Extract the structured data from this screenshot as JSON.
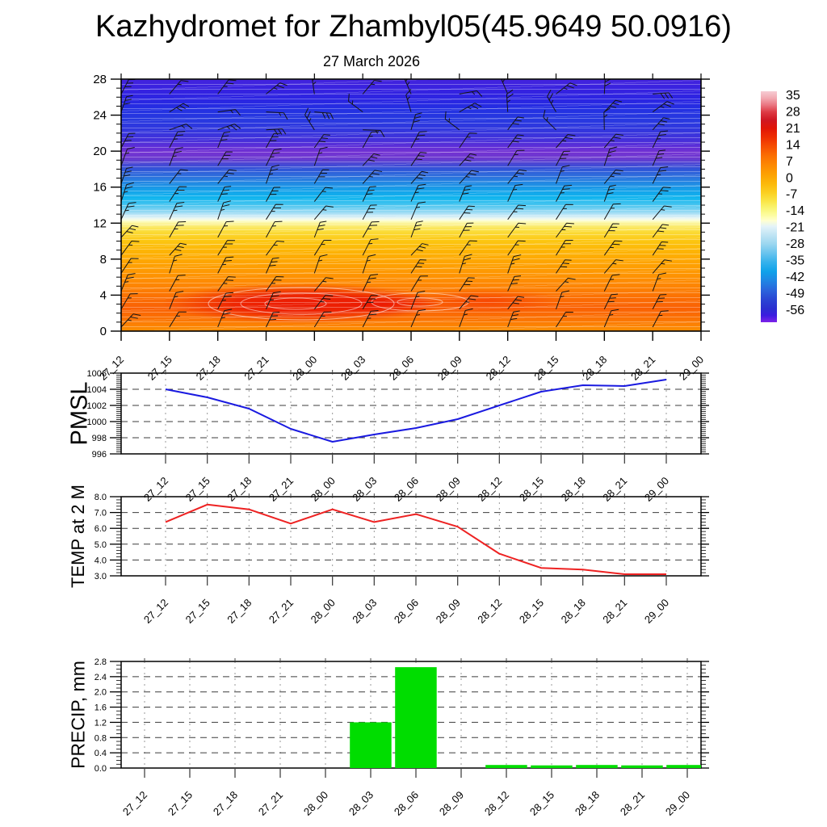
{
  "title": "Kazhydromet for Zhambyl05(45.9649 50.0916)",
  "subtitle": "27 March 2026",
  "time_labels": [
    "27_12",
    "27_15",
    "27_18",
    "27_21",
    "28_00",
    "28_03",
    "28_06",
    "28_09",
    "28_12",
    "28_15",
    "28_18",
    "28_21",
    "29_00"
  ],
  "chart_data": [
    {
      "type": "heatmap",
      "name": "temperature-height-section",
      "title": "27 March 2026",
      "categories": [
        "27_12",
        "27_15",
        "27_18",
        "27_21",
        "28_00",
        "28_03",
        "28_06",
        "28_09",
        "28_12",
        "28_15",
        "28_18",
        "28_21",
        "29_00"
      ],
      "ylim": [
        0,
        28
      ],
      "ytick_labels": [
        "0",
        "4",
        "8",
        "12",
        "16",
        "20",
        "24",
        "28"
      ],
      "colorbar_labels": [
        "35",
        "28",
        "21",
        "14",
        "7",
        "0",
        "-7",
        "-14",
        "-21",
        "-28",
        "-35",
        "-42",
        "-49",
        "-56"
      ],
      "overlay": "wind barbs and white temperature contour lines",
      "estimated_profile": {
        "height_km": [
          0,
          2,
          3,
          5,
          8,
          10,
          12,
          13,
          14,
          16,
          18,
          20,
          24,
          28
        ],
        "temp_c": [
          8,
          16,
          21,
          13,
          7,
          2,
          -5,
          -14,
          -24,
          -34,
          -45,
          -56,
          -52,
          -50
        ]
      },
      "warm_core": {
        "height_km": [
          2,
          4
        ],
        "time_span": [
          "27_15",
          "28_06"
        ],
        "max_temp_c": 21
      }
    },
    {
      "type": "line",
      "name": "PMSL",
      "color": "#1a1ae0",
      "categories": [
        "27_12",
        "27_15",
        "27_18",
        "27_21",
        "28_00",
        "28_03",
        "28_06",
        "28_09",
        "28_12",
        "28_15",
        "28_18",
        "28_21",
        "29_00"
      ],
      "values": [
        1004.0,
        1003.0,
        1001.6,
        999.1,
        997.5,
        998.4,
        999.2,
        1000.3,
        1002.0,
        1003.7,
        1004.5,
        1004.4,
        1005.2
      ],
      "ylim": [
        996,
        1006
      ],
      "ytick_labels": [
        "996",
        "998",
        "1000",
        "1002",
        "1004",
        "1006"
      ],
      "grid": "dashed"
    },
    {
      "type": "line",
      "name": "TEMP at 2 M",
      "color": "#ee2222",
      "categories": [
        "27_12",
        "27_15",
        "27_18",
        "27_21",
        "28_00",
        "28_03",
        "28_06",
        "28_09",
        "28_12",
        "28_15",
        "28_18",
        "28_21",
        "29_00"
      ],
      "values": [
        6.4,
        7.5,
        7.2,
        6.3,
        7.2,
        6.4,
        6.9,
        6.1,
        4.4,
        3.5,
        3.4,
        3.1,
        3.1
      ],
      "ylim": [
        3.0,
        8.0
      ],
      "ytick_labels": [
        "3.0",
        "4.0",
        "5.0",
        "6.0",
        "7.0",
        "8.0"
      ],
      "grid": "dashed"
    },
    {
      "type": "bar",
      "name": "PRECIP, mm",
      "color": "#00dd00",
      "categories": [
        "27_12",
        "27_15",
        "27_18",
        "27_21",
        "28_00",
        "28_03",
        "28_06",
        "28_09",
        "28_12",
        "28_15",
        "28_18",
        "28_21",
        "29_00"
      ],
      "values": [
        0,
        0,
        0,
        0,
        0,
        1.2,
        2.65,
        0,
        0.08,
        0.07,
        0.08,
        0.07,
        0.08
      ],
      "ylim": [
        0.0,
        2.8
      ],
      "ytick_labels": [
        "0.0",
        "0.4",
        "0.8",
        "1.2",
        "1.6",
        "2.0",
        "2.4",
        "2.8"
      ],
      "grid": "dashed"
    }
  ]
}
